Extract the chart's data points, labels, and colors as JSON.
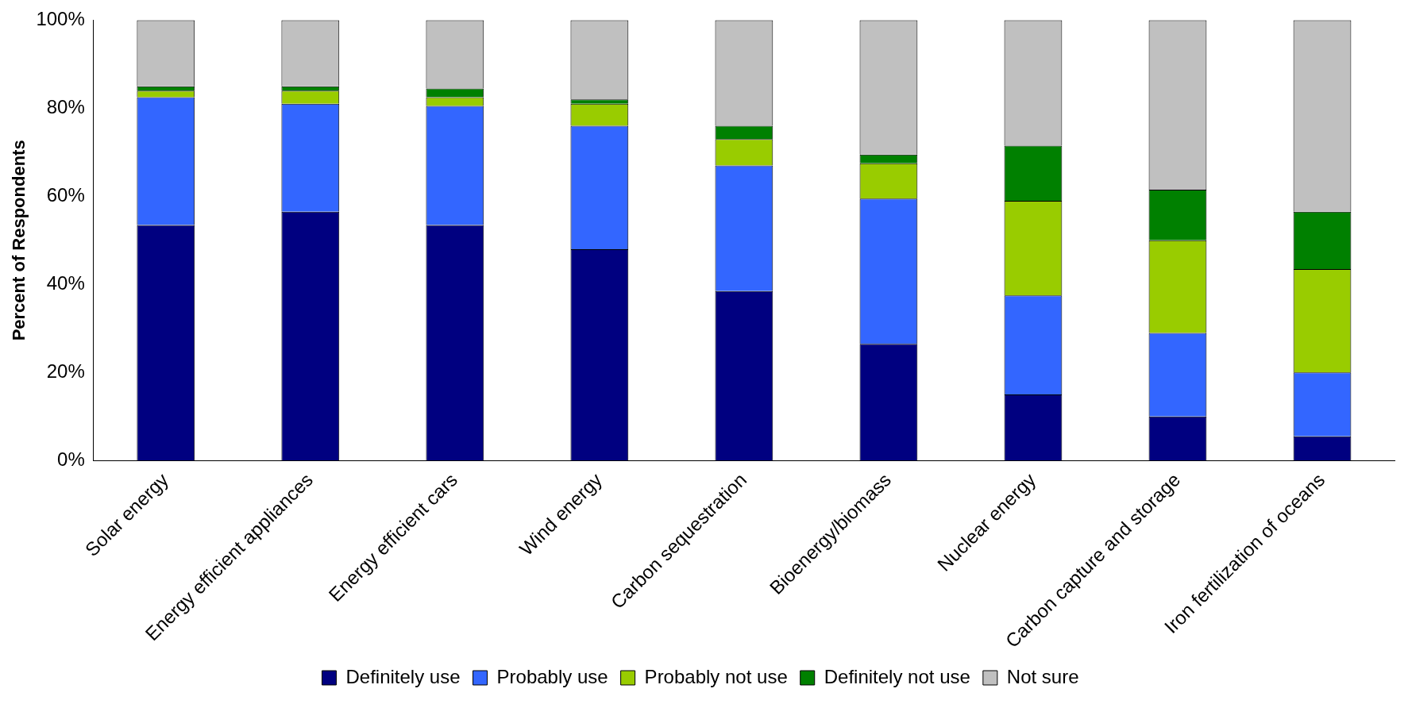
{
  "chart_data": {
    "type": "bar",
    "stacked": true,
    "ylabel": "Percent of Respondents",
    "categories": [
      "Solar energy",
      "Energy efficient appliances",
      "Energy efficient cars",
      "Wind energy",
      "Carbon sequestration",
      "Bioenergy/biomass",
      "Nuclear energy",
      "Carbon capture and storage",
      "Iron fertilization of oceans"
    ],
    "series": [
      {
        "name": "Definitely use",
        "color": "#000080",
        "values": [
          53.5,
          56.5,
          53.5,
          48,
          38.5,
          26.5,
          15,
          10,
          5.5
        ]
      },
      {
        "name": "Probably use",
        "color": "#3366ff",
        "values": [
          29,
          24.5,
          27,
          28,
          28.5,
          33,
          22.5,
          19,
          14.5
        ]
      },
      {
        "name": "Probably not use",
        "color": "#99cc00",
        "values": [
          1.5,
          3,
          2,
          5,
          6,
          8,
          21.5,
          21,
          23.5
        ]
      },
      {
        "name": "Definitely not use",
        "color": "#008000",
        "values": [
          1,
          1,
          2,
          1,
          3,
          2,
          12.5,
          11.5,
          13
        ]
      },
      {
        "name": "Not sure",
        "color": "#c0c0c0",
        "values": [
          15,
          15,
          15.5,
          18,
          24,
          30.5,
          28.5,
          38.5,
          43.5
        ]
      }
    ],
    "ylim": [
      0,
      100
    ],
    "yticks": [
      {
        "value": 0,
        "label": "0%"
      },
      {
        "value": 20,
        "label": "20%"
      },
      {
        "value": 40,
        "label": "40%"
      },
      {
        "value": 60,
        "label": "60%"
      },
      {
        "value": 80,
        "label": "80%"
      },
      {
        "value": 100,
        "label": "100%"
      }
    ],
    "grid": false,
    "legend": "bottom"
  }
}
